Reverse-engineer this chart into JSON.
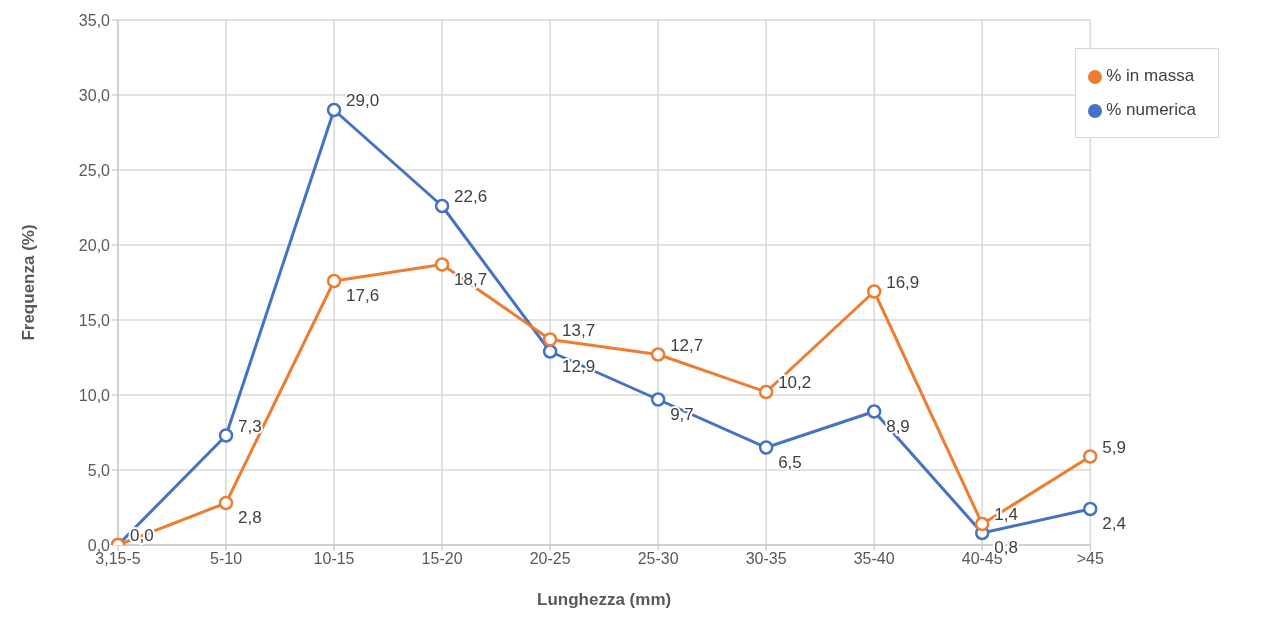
{
  "chart_data": {
    "type": "line",
    "xlabel": "Lunghezza (mm)",
    "ylabel": "Frequenza (%)",
    "categories": [
      "3,15-5",
      "5-10",
      "10-15",
      "15-20",
      "20-25",
      "25-30",
      "30-35",
      "35-40",
      "40-45",
      ">45"
    ],
    "series": [
      {
        "name": "% numerica",
        "color": "#4472c4",
        "values": [
          0.0,
          7.3,
          29.0,
          22.6,
          12.9,
          9.7,
          6.5,
          8.9,
          0.8,
          2.4
        ],
        "value_labels": [
          "0,0",
          "7,3",
          "29,0",
          "22,6",
          "12,9",
          "9,7",
          "6,5",
          "8,9",
          "0,8",
          "2,4"
        ]
      },
      {
        "name": "% in massa",
        "color": "#ed7d31",
        "values": [
          0.0,
          2.8,
          17.6,
          18.7,
          13.7,
          12.7,
          10.2,
          16.9,
          1.4,
          5.9
        ],
        "value_labels": [
          null,
          "2,8",
          "17,6",
          "18,7",
          "13,7",
          "12,7",
          "10,2",
          "16,9",
          "1,4",
          "5,9"
        ]
      }
    ],
    "ylim": [
      0,
      35
    ],
    "yticks": [
      {
        "value": 0,
        "label": "0,0"
      },
      {
        "value": 5,
        "label": "5,0"
      },
      {
        "value": 10,
        "label": "10,0"
      },
      {
        "value": 15,
        "label": "15,0"
      },
      {
        "value": 20,
        "label": "20,0"
      },
      {
        "value": 25,
        "label": "25,0"
      },
      {
        "value": 30,
        "label": "30,0"
      },
      {
        "value": 35,
        "label": "35,0"
      }
    ],
    "grid": true,
    "legend": "top right",
    "marker": "circle",
    "line_style": "solid"
  }
}
